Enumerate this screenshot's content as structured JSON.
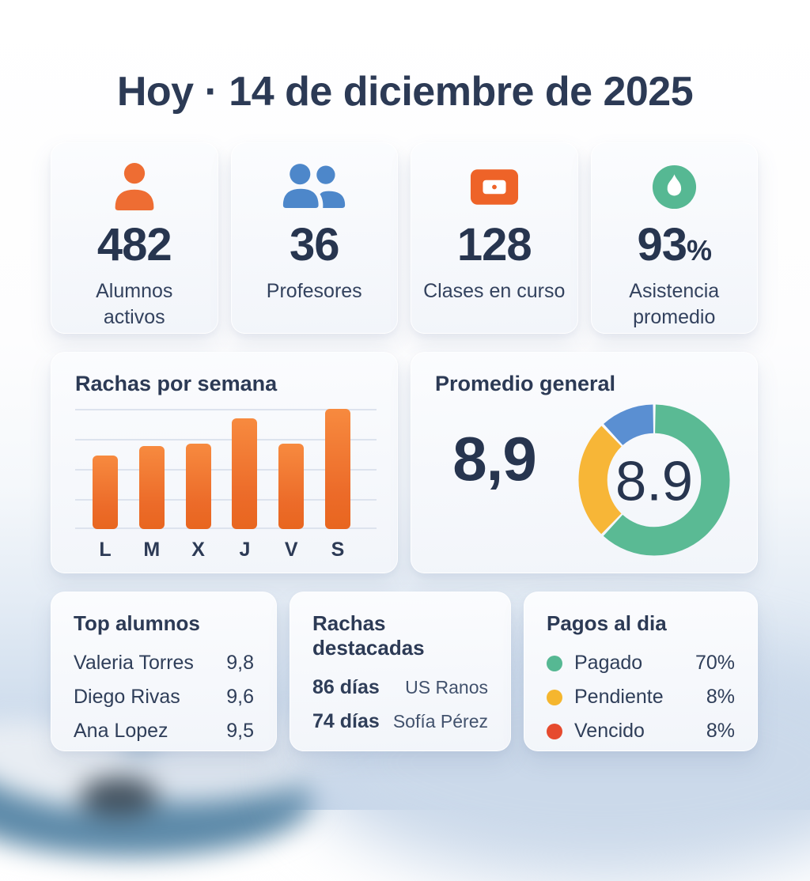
{
  "header": {
    "title": "Hoy · 14 de diciembre de 2025"
  },
  "stats": [
    {
      "icon": "user-icon",
      "value": "482",
      "suffix": "",
      "label": "Alumnos\nactivos",
      "color": "#ee6d33"
    },
    {
      "icon": "users-icon",
      "value": "36",
      "suffix": "",
      "label": "Profesores",
      "color": "#4d87ca"
    },
    {
      "icon": "class-card-icon",
      "value": "128",
      "suffix": "",
      "label": "Clases en curso",
      "color": "#ee6328"
    },
    {
      "icon": "attendance-drop-icon",
      "value": "93",
      "suffix": "%",
      "label": "Asistencia\npromedio",
      "color": "#56b893"
    }
  ],
  "chart_data": [
    {
      "type": "bar",
      "title": "Rachas por semana",
      "categories": [
        "L",
        "M",
        "X",
        "J",
        "V",
        "S"
      ],
      "values": [
        61,
        69,
        71,
        92,
        71,
        100
      ],
      "xlabel": "",
      "ylabel": "",
      "ylim": [
        0,
        100
      ],
      "grid": true,
      "bar_color": "#ef7030",
      "note": "no numeric axis labels shown; values estimated as percent of tallest bar (S)"
    },
    {
      "type": "pie",
      "style": "donut",
      "title": "Promedio general",
      "side_value": "8,9",
      "center_label": "8.9",
      "legend": false,
      "slices": [
        {
          "name": "green-segment",
          "pct": 62,
          "color": "#5aba94"
        },
        {
          "name": "yellow-segment",
          "pct": 26,
          "color": "#f7b637"
        },
        {
          "name": "blue-segment",
          "pct": 12,
          "color": "#5a8fd2"
        }
      ]
    }
  ],
  "top_students": {
    "title": "Top alumnos",
    "rows": [
      {
        "name": "Valeria Torres",
        "score": "9,8"
      },
      {
        "name": "Diego Rivas",
        "score": "9,6"
      },
      {
        "name": "Ana Lopez",
        "score": "9,5"
      }
    ]
  },
  "top_streaks": {
    "title": "Rachas destacadas",
    "rows": [
      {
        "days": "86 días",
        "name": "US Ranos"
      },
      {
        "days": "74 días",
        "name": "Sofía Pérez"
      }
    ]
  },
  "payments": {
    "title": "Pagos al dia",
    "rows": [
      {
        "label": "Pagado",
        "pct": "70%",
        "color": "#56b893"
      },
      {
        "label": "Pendiente",
        "pct": "8%",
        "color": "#f5b62e"
      },
      {
        "label": "Vencido",
        "pct": "8%",
        "color": "#e64a2e"
      }
    ]
  }
}
